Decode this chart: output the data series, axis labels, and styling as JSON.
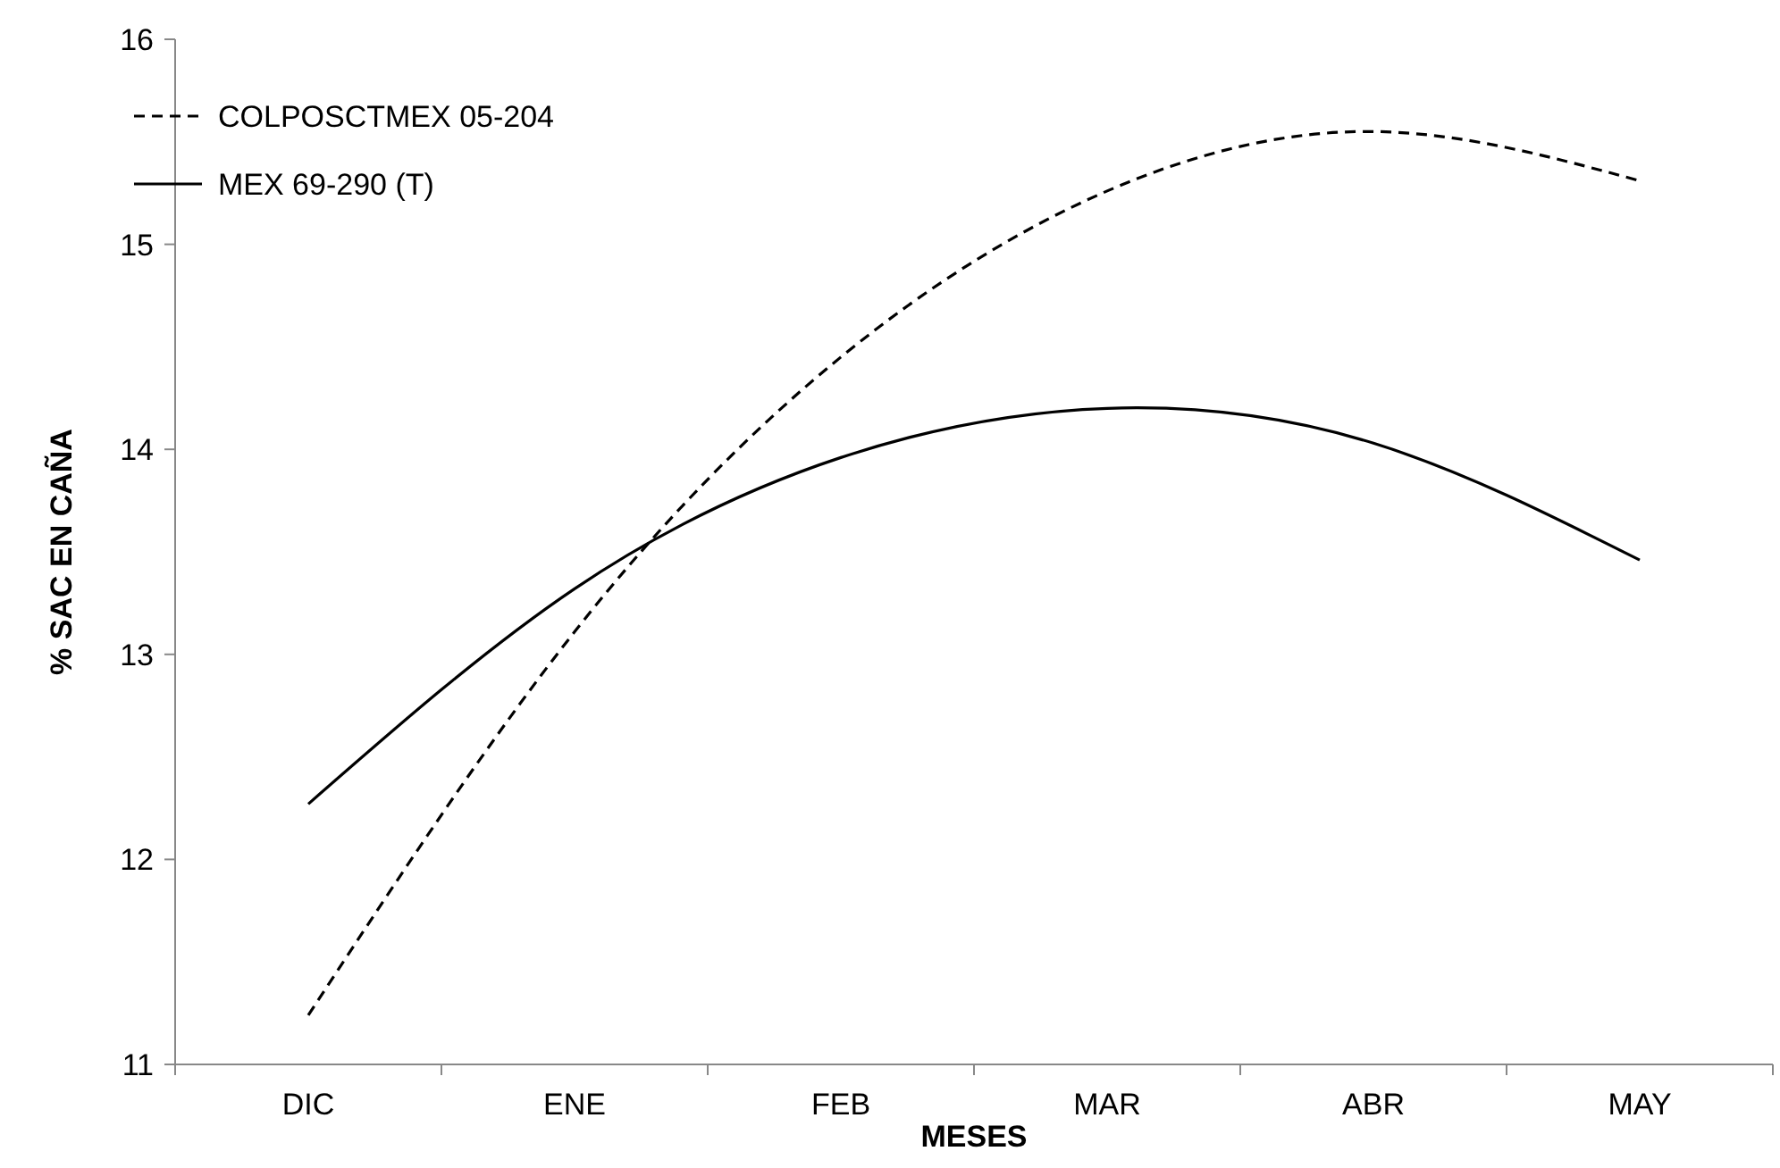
{
  "chart_data": {
    "type": "line",
    "xlabel": "MESES",
    "ylabel": "% SAC EN CAÑA",
    "categories": [
      "DIC",
      "ENE",
      "FEB",
      "MAR",
      "ABR",
      "MAY"
    ],
    "series": [
      {
        "name": "COLPOSCTMEX 05-204",
        "color": "#000000",
        "line_style": "dashed",
        "values": [
          11.24,
          13.11,
          14.45,
          15.26,
          15.55,
          15.31
        ]
      },
      {
        "name": "MEX 69-290 (T)",
        "color": "#000000",
        "line_style": "solid",
        "values": [
          12.27,
          13.32,
          13.96,
          14.2,
          14.03,
          13.46
        ]
      }
    ],
    "ylim": [
      11,
      16
    ],
    "yticks": [
      11,
      12,
      13,
      14,
      15,
      16
    ],
    "grid": false,
    "legend": "top left",
    "marker": "none"
  }
}
